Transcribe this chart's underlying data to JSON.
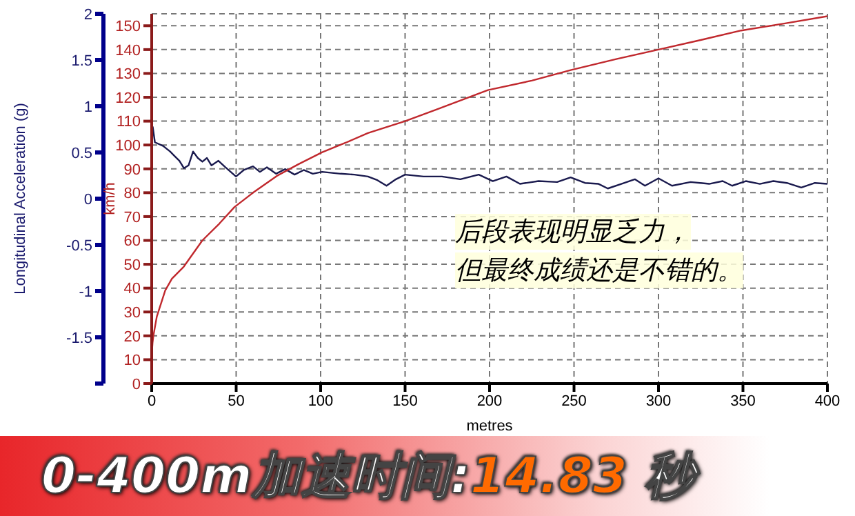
{
  "chart_data": {
    "type": "line",
    "title": "0-400m加速时间:14.83 秒",
    "xlabel": "metres",
    "ylabel": "Longitudinal Acceleration (g)",
    "y2label": "km/h",
    "annotations": [
      "后段表现明显乏力，",
      "但最终成绩还是不错的。"
    ],
    "xlim": [
      0,
      400
    ],
    "xticks": [
      0,
      50,
      100,
      150,
      200,
      250,
      300,
      350,
      400
    ],
    "ylim": [
      -2,
      2
    ],
    "yticks": [
      {
        "value": -2,
        "label": null
      },
      -1.5,
      -1,
      -0.5,
      0,
      0.5,
      1,
      1.5,
      2
    ],
    "y2lim": [
      0,
      155
    ],
    "y2ticks": [
      0,
      10,
      20,
      30,
      40,
      50,
      60,
      70,
      80,
      90,
      100,
      110,
      120,
      130,
      140,
      150
    ],
    "grid": true,
    "marker": "none",
    "line_style": "solid",
    "series": [
      {
        "color": "#1a1a4e",
        "x": [
          0.6,
          1.9,
          6.8,
          10.9,
          13.6,
          16.4,
          19.1,
          21.8,
          24.5,
          27.3,
          30,
          32.7,
          35.4,
          39.5,
          43.6,
          49.9,
          54.5,
          60,
          64,
          68.2,
          73.6,
          79,
          84.6,
          90,
          95.4,
          100.9,
          111.8,
          120,
          128,
          133.6,
          139,
          144.6,
          150,
          160.9,
          171.8,
          182.7,
          193.6,
          201.9,
          210,
          218,
          229,
          240,
          248,
          256.5,
          264.5,
          270,
          278,
          286,
          292,
          300,
          308,
          319,
          330,
          338,
          343.6,
          351.7,
          360,
          368,
          376,
          384.5,
          392.6,
          400
        ],
        "values": [
          0.78,
          0.61,
          0.57,
          0.51,
          0.46,
          0.41,
          0.33,
          0.36,
          0.51,
          0.44,
          0.4,
          0.44,
          0.36,
          0.41,
          0.34,
          0.24,
          0.31,
          0.35,
          0.29,
          0.34,
          0.27,
          0.32,
          0.26,
          0.31,
          0.27,
          0.29,
          0.27,
          0.26,
          0.24,
          0.2,
          0.14,
          0.21,
          0.26,
          0.24,
          0.24,
          0.21,
          0.26,
          0.19,
          0.24,
          0.16,
          0.19,
          0.18,
          0.23,
          0.17,
          0.16,
          0.11,
          0.16,
          0.21,
          0.14,
          0.22,
          0.14,
          0.18,
          0.16,
          0.19,
          0.14,
          0.19,
          0.16,
          0.19,
          0.17,
          0.12,
          0.17,
          0.16
        ]
      },
      {
        "color": "#c0282d",
        "axis": "y2",
        "x": [
          0,
          0,
          0.5,
          1,
          3,
          8,
          12,
          19,
          30,
          40,
          49,
          60,
          74,
          87,
          101,
          115,
          128,
          150,
          169,
          199,
          225,
          248,
          275,
          300,
          325,
          349,
          375,
          400
        ],
        "values": [
          0,
          12,
          17,
          20,
          28,
          39,
          44,
          49,
          60,
          67,
          74,
          80,
          87,
          92,
          97,
          101,
          105,
          110,
          115,
          123,
          127,
          131.4,
          136,
          140,
          144,
          148,
          151,
          154
        ]
      }
    ]
  }
}
